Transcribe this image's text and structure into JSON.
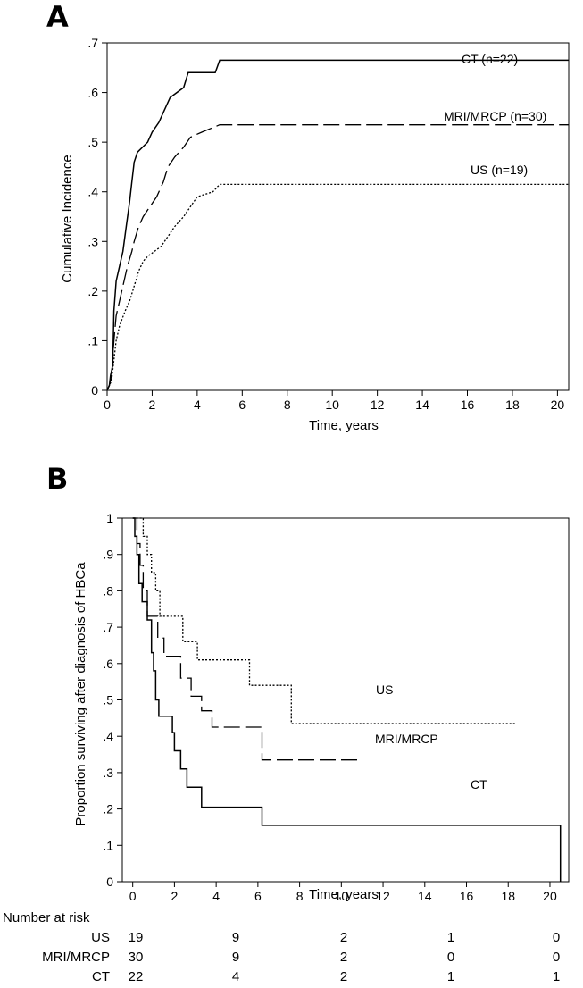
{
  "chart_data": [
    {
      "type": "line",
      "panel_label": "A",
      "title": "",
      "xlabel": "Time, years",
      "ylabel": "Cumulative Incidence",
      "xlim": [
        0,
        20.5
      ],
      "ylim": [
        0,
        0.7
      ],
      "x_ticks": [
        0,
        2,
        4,
        6,
        8,
        10,
        12,
        14,
        16,
        18,
        20
      ],
      "x_tick_labels": [
        "0",
        "2",
        "4",
        "6",
        "8",
        "10",
        "12",
        "14",
        "16",
        "18",
        "20"
      ],
      "y_ticks": [
        0,
        0.1,
        0.2,
        0.3,
        0.4,
        0.5,
        0.6,
        0.7
      ],
      "y_tick_labels": [
        "0",
        ".1",
        ".2",
        ".3",
        ".4",
        ".5",
        ".6",
        ".7"
      ],
      "grid": false,
      "series": [
        {
          "name": "CT (n=22)",
          "style": "solid",
          "points": [
            [
              0,
              0
            ],
            [
              0.1,
              0.01
            ],
            [
              0.15,
              0.03
            ],
            [
              0.25,
              0.05
            ],
            [
              0.3,
              0.16
            ],
            [
              0.4,
              0.22
            ],
            [
              0.55,
              0.25
            ],
            [
              0.7,
              0.28
            ],
            [
              0.85,
              0.33
            ],
            [
              1.0,
              0.38
            ],
            [
              1.1,
              0.42
            ],
            [
              1.2,
              0.46
            ],
            [
              1.35,
              0.48
            ],
            [
              1.8,
              0.5
            ],
            [
              2.0,
              0.52
            ],
            [
              2.3,
              0.54
            ],
            [
              2.5,
              0.56
            ],
            [
              2.8,
              0.59
            ],
            [
              3.4,
              0.61
            ],
            [
              3.6,
              0.64
            ],
            [
              4.8,
              0.64
            ],
            [
              5.0,
              0.665
            ],
            [
              20.5,
              0.665
            ]
          ]
        },
        {
          "name": "MRI/MRCP (n=30)",
          "style": "dashed",
          "points": [
            [
              0,
              0
            ],
            [
              0.1,
              0.01
            ],
            [
              0.2,
              0.03
            ],
            [
              0.3,
              0.1
            ],
            [
              0.4,
              0.15
            ],
            [
              0.55,
              0.18
            ],
            [
              0.7,
              0.21
            ],
            [
              0.9,
              0.25
            ],
            [
              1.1,
              0.28
            ],
            [
              1.2,
              0.3
            ],
            [
              1.4,
              0.33
            ],
            [
              1.6,
              0.35
            ],
            [
              1.9,
              0.37
            ],
            [
              2.2,
              0.39
            ],
            [
              2.5,
              0.42
            ],
            [
              2.7,
              0.45
            ],
            [
              3.0,
              0.47
            ],
            [
              3.4,
              0.49
            ],
            [
              3.7,
              0.51
            ],
            [
              4.2,
              0.52
            ],
            [
              5.0,
              0.535
            ],
            [
              20.5,
              0.535
            ]
          ]
        },
        {
          "name": "US (n=19)",
          "style": "dotted",
          "points": [
            [
              0,
              0
            ],
            [
              0.2,
              0.02
            ],
            [
              0.4,
              0.1
            ],
            [
              0.55,
              0.13
            ],
            [
              0.8,
              0.16
            ],
            [
              1.0,
              0.18
            ],
            [
              1.2,
              0.21
            ],
            [
              1.4,
              0.24
            ],
            [
              1.6,
              0.26
            ],
            [
              1.8,
              0.27
            ],
            [
              2.1,
              0.28
            ],
            [
              2.4,
              0.29
            ],
            [
              2.7,
              0.31
            ],
            [
              3.0,
              0.33
            ],
            [
              3.4,
              0.35
            ],
            [
              3.7,
              0.37
            ],
            [
              4.0,
              0.39
            ],
            [
              4.7,
              0.4
            ],
            [
              5.0,
              0.415
            ],
            [
              20.5,
              0.415
            ]
          ]
        }
      ]
    },
    {
      "type": "line",
      "panel_label": "B",
      "title": "",
      "xlabel": "Time, years",
      "ylabel": "Proportion surviving after diagnosis of HBCa",
      "xlim": [
        -0.5,
        20.9
      ],
      "ylim": [
        0,
        1
      ],
      "x_ticks": [
        0,
        2,
        4,
        6,
        8,
        10,
        12,
        14,
        16,
        18,
        20
      ],
      "x_tick_labels": [
        "0",
        "2",
        "4",
        "6",
        "8",
        "10",
        "12",
        "14",
        "16",
        "18",
        "20"
      ],
      "y_ticks": [
        0,
        0.1,
        0.2,
        0.3,
        0.4,
        0.5,
        0.6,
        0.7,
        0.8,
        0.9,
        1
      ],
      "y_tick_labels": [
        "0",
        ".1",
        ".2",
        ".3",
        ".4",
        ".5",
        ".6",
        ".7",
        ".8",
        ".9",
        "1"
      ],
      "grid": false,
      "series": [
        {
          "name": "US",
          "style": "dotted",
          "points": [
            [
              0,
              1
            ],
            [
              0.5,
              1
            ],
            [
              0.5,
              0.95
            ],
            [
              0.7,
              0.95
            ],
            [
              0.7,
              0.9
            ],
            [
              0.9,
              0.9
            ],
            [
              0.9,
              0.85
            ],
            [
              1.1,
              0.85
            ],
            [
              1.1,
              0.8
            ],
            [
              1.3,
              0.8
            ],
            [
              1.3,
              0.73
            ],
            [
              2.4,
              0.73
            ],
            [
              2.4,
              0.66
            ],
            [
              3.1,
              0.66
            ],
            [
              3.1,
              0.61
            ],
            [
              5.6,
              0.61
            ],
            [
              5.6,
              0.54
            ],
            [
              7.6,
              0.54
            ],
            [
              7.6,
              0.435
            ],
            [
              18.4,
              0.435
            ]
          ]
        },
        {
          "name": "MRI/MRCP",
          "style": "dashed",
          "points": [
            [
              0,
              1
            ],
            [
              0.2,
              1
            ],
            [
              0.2,
              0.93
            ],
            [
              0.35,
              0.93
            ],
            [
              0.35,
              0.87
            ],
            [
              0.5,
              0.87
            ],
            [
              0.5,
              0.8
            ],
            [
              0.7,
              0.8
            ],
            [
              0.7,
              0.73
            ],
            [
              1.2,
              0.73
            ],
            [
              1.2,
              0.67
            ],
            [
              1.5,
              0.67
            ],
            [
              1.5,
              0.62
            ],
            [
              2.3,
              0.62
            ],
            [
              2.3,
              0.56
            ],
            [
              2.8,
              0.56
            ],
            [
              2.8,
              0.51
            ],
            [
              3.3,
              0.51
            ],
            [
              3.3,
              0.47
            ],
            [
              3.8,
              0.47
            ],
            [
              3.8,
              0.425
            ],
            [
              6.2,
              0.425
            ],
            [
              6.2,
              0.335
            ],
            [
              10.8,
              0.335
            ]
          ]
        },
        {
          "name": "CT",
          "style": "solid",
          "points": [
            [
              0,
              1
            ],
            [
              0.1,
              1
            ],
            [
              0.1,
              0.95
            ],
            [
              0.2,
              0.95
            ],
            [
              0.2,
              0.9
            ],
            [
              0.3,
              0.9
            ],
            [
              0.3,
              0.82
            ],
            [
              0.45,
              0.82
            ],
            [
              0.45,
              0.77
            ],
            [
              0.7,
              0.77
            ],
            [
              0.7,
              0.72
            ],
            [
              0.9,
              0.72
            ],
            [
              0.9,
              0.63
            ],
            [
              1.0,
              0.63
            ],
            [
              1.0,
              0.58
            ],
            [
              1.1,
              0.58
            ],
            [
              1.1,
              0.5
            ],
            [
              1.25,
              0.5
            ],
            [
              1.25,
              0.455
            ],
            [
              1.9,
              0.455
            ],
            [
              1.9,
              0.41
            ],
            [
              2.0,
              0.41
            ],
            [
              2.0,
              0.36
            ],
            [
              2.3,
              0.36
            ],
            [
              2.3,
              0.31
            ],
            [
              2.6,
              0.31
            ],
            [
              2.6,
              0.26
            ],
            [
              3.3,
              0.26
            ],
            [
              3.3,
              0.205
            ],
            [
              6.2,
              0.205
            ],
            [
              6.2,
              0.155
            ],
            [
              20.5,
              0.155
            ],
            [
              20.5,
              0
            ]
          ]
        }
      ]
    }
  ],
  "risk_table": {
    "header": "Number at risk",
    "rows": [
      {
        "label": "US",
        "values": [
          "19",
          "9",
          "2",
          "1",
          "0"
        ]
      },
      {
        "label": "MRI/MRCP",
        "values": [
          "30",
          "9",
          "2",
          "0",
          "0"
        ]
      },
      {
        "label": "CT",
        "values": [
          "22",
          "4",
          "2",
          "1",
          "1"
        ]
      }
    ]
  }
}
